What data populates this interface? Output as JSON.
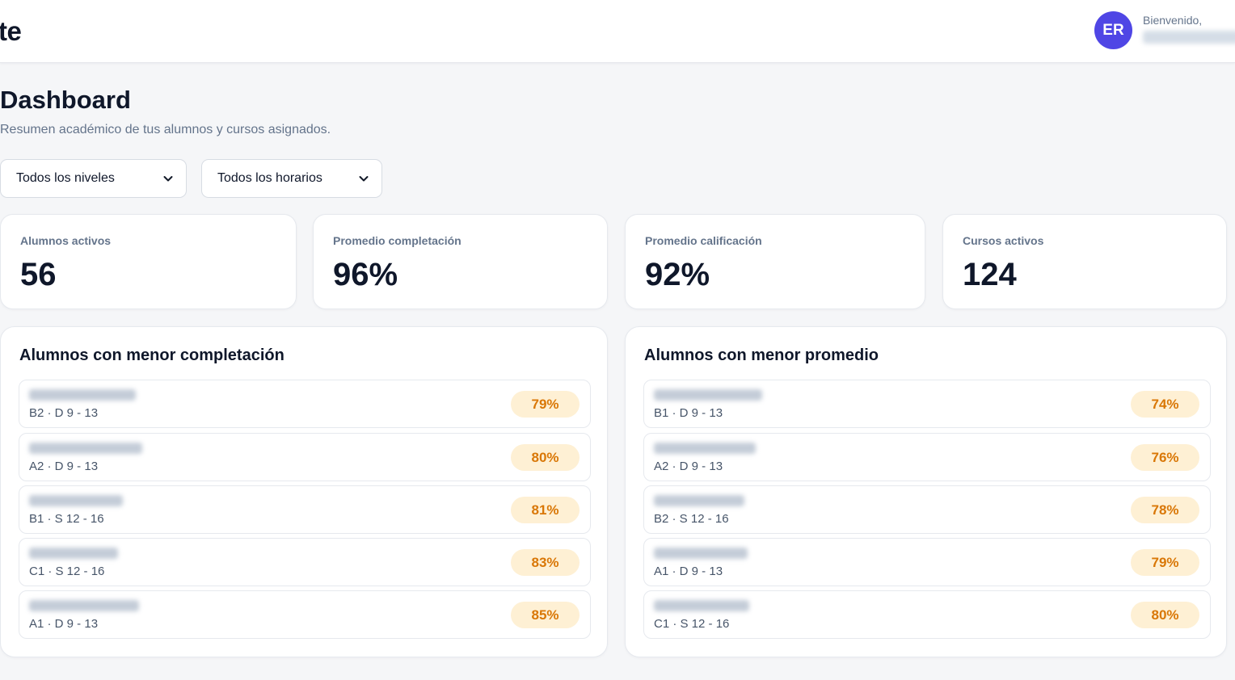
{
  "header": {
    "brand": "te",
    "avatar_initials": "ER",
    "welcome": "Bienvenido,"
  },
  "page": {
    "title": "Dashboard",
    "subtitle": "Resumen académico de tus alumnos y cursos asignados."
  },
  "filters": {
    "nivel": "Todos los niveles",
    "horario": "Todos los horarios"
  },
  "stats": [
    {
      "label": "Alumnos activos",
      "value": "56"
    },
    {
      "label": "Promedio completación",
      "value": "96%"
    },
    {
      "label": "Promedio calificación",
      "value": "92%"
    },
    {
      "label": "Cursos activos",
      "value": "124"
    }
  ],
  "completion_panel": {
    "title": "Alumnos con menor completación",
    "rows": [
      {
        "meta": "B2 · D 9 - 13",
        "pct": "79%"
      },
      {
        "meta": "A2 · D 9 - 13",
        "pct": "80%"
      },
      {
        "meta": "B1 · S 12 - 16",
        "pct": "81%"
      },
      {
        "meta": "C1 · S 12 - 16",
        "pct": "83%"
      },
      {
        "meta": "A1 · D 9 - 13",
        "pct": "85%"
      }
    ]
  },
  "average_panel": {
    "title": "Alumnos con menor promedio",
    "rows": [
      {
        "meta": "B1 · D 9 - 13",
        "pct": "74%"
      },
      {
        "meta": "A2 · D 9 - 13",
        "pct": "76%"
      },
      {
        "meta": "B2 · S 12 - 16",
        "pct": "78%"
      },
      {
        "meta": "A1 · D 9 - 13",
        "pct": "79%"
      },
      {
        "meta": "C1 · S 12 - 16",
        "pct": "80%"
      }
    ]
  },
  "colors": {
    "accent": "#4f46e5",
    "badge_bg": "#fef0d4",
    "badge_text": "#d97706"
  }
}
